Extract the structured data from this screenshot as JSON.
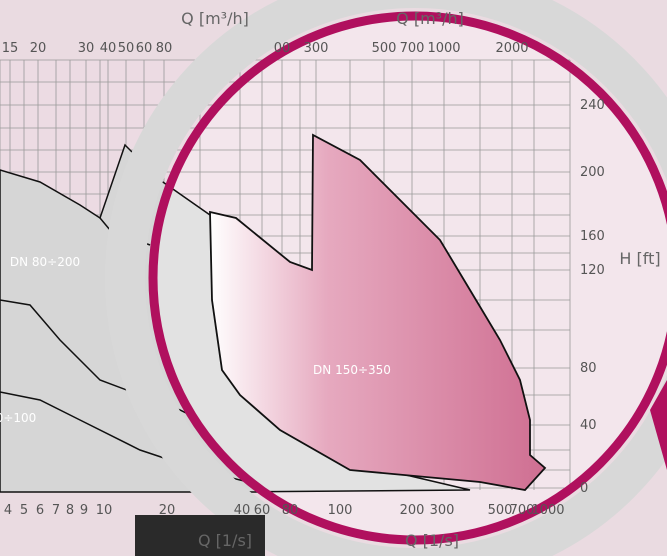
{
  "axes": {
    "top_label_left": "Q [m³/h]",
    "top_label_right": "Q [m³/h]",
    "bottom_label_left": "Q [1/s]",
    "bottom_label_right": "Q [1/s]",
    "right_label": "H [ft]",
    "top_ticks": [
      "15",
      "20",
      "30",
      "40",
      "50",
      "60",
      "80",
      "00",
      "300",
      "500",
      "700",
      "1000",
      "2000"
    ],
    "right_ticks": [
      "240",
      "200",
      "160",
      "120",
      "80",
      "40",
      "0"
    ],
    "bottom_ticks": [
      "4",
      "5",
      "6",
      "7",
      "8",
      "9",
      "10",
      "20",
      "40",
      "60",
      "80",
      "100",
      "200",
      "300",
      "500",
      "700",
      "1000"
    ]
  },
  "regions": [
    "DN 80÷200",
    "DN 150÷350",
    "0÷100"
  ]
}
